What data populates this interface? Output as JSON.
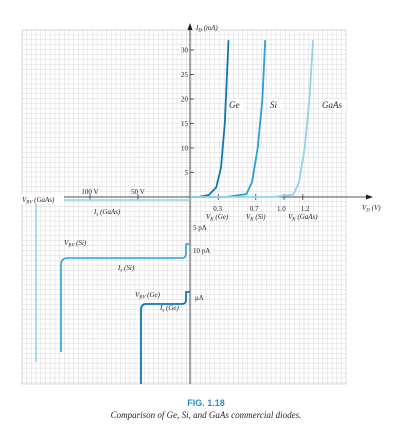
{
  "figure": {
    "number": "FIG. 1.18",
    "caption": "Comparison of Ge, Si, and GaAs commercial diodes."
  },
  "chart_data": {
    "type": "line",
    "title": "",
    "xlabel": "V_D (V)",
    "ylabel": "I_D (mA)",
    "xlim": [
      -110,
      2.6
    ],
    "ylim": [
      -35,
      35
    ],
    "grid": true,
    "colors": {
      "ge": "#0e77b8",
      "si": "#2aa0d6",
      "gaas": "#8fd3ee",
      "grid": "#c8c8c8",
      "axis": "#231f20"
    },
    "y_ticks_positive": [
      "5",
      "10",
      "15",
      "20",
      "25",
      "30"
    ],
    "x_ticks_negative": [
      "100 V",
      "50 V"
    ],
    "x_ticks_positive": [
      "0.3",
      "0.7",
      "1.0",
      "1.2"
    ],
    "series": [
      {
        "name": "Ge",
        "key": "ge",
        "forward": [
          [
            0,
            0
          ],
          [
            0.1,
            0.05
          ],
          [
            0.2,
            0.4
          ],
          [
            0.28,
            2
          ],
          [
            0.33,
            6
          ],
          [
            0.37,
            15
          ],
          [
            0.41,
            32
          ]
        ],
        "reverse_current_label": "I_s (Ge)",
        "reverse_current_value": "μA",
        "breakdown_label": "V_BV (Ge)"
      },
      {
        "name": "Si",
        "key": "si",
        "forward": [
          [
            0,
            0
          ],
          [
            0.4,
            0.05
          ],
          [
            0.6,
            0.6
          ],
          [
            0.66,
            3
          ],
          [
            0.72,
            10
          ],
          [
            0.77,
            20
          ],
          [
            0.8,
            32
          ]
        ],
        "reverse_current_label": "I_s (Si)",
        "reverse_current_value": "10 pA",
        "breakdown_label": "V_BV (Si)"
      },
      {
        "name": "GaAs",
        "key": "gaas",
        "forward": [
          [
            0,
            0
          ],
          [
            0.9,
            0.05
          ],
          [
            1.1,
            0.5
          ],
          [
            1.16,
            3
          ],
          [
            1.22,
            10
          ],
          [
            1.27,
            20
          ],
          [
            1.31,
            32
          ]
        ],
        "reverse_current_label": "I_s (GaAs)",
        "reverse_current_value": "5 pA",
        "breakdown_label": "V_BV (GaAs)"
      }
    ],
    "annotations": {
      "vk_ge": "V_K (Ge)",
      "vk_si": "V_K (Si)",
      "vk_gaas": "V_K (GaAs)"
    }
  }
}
